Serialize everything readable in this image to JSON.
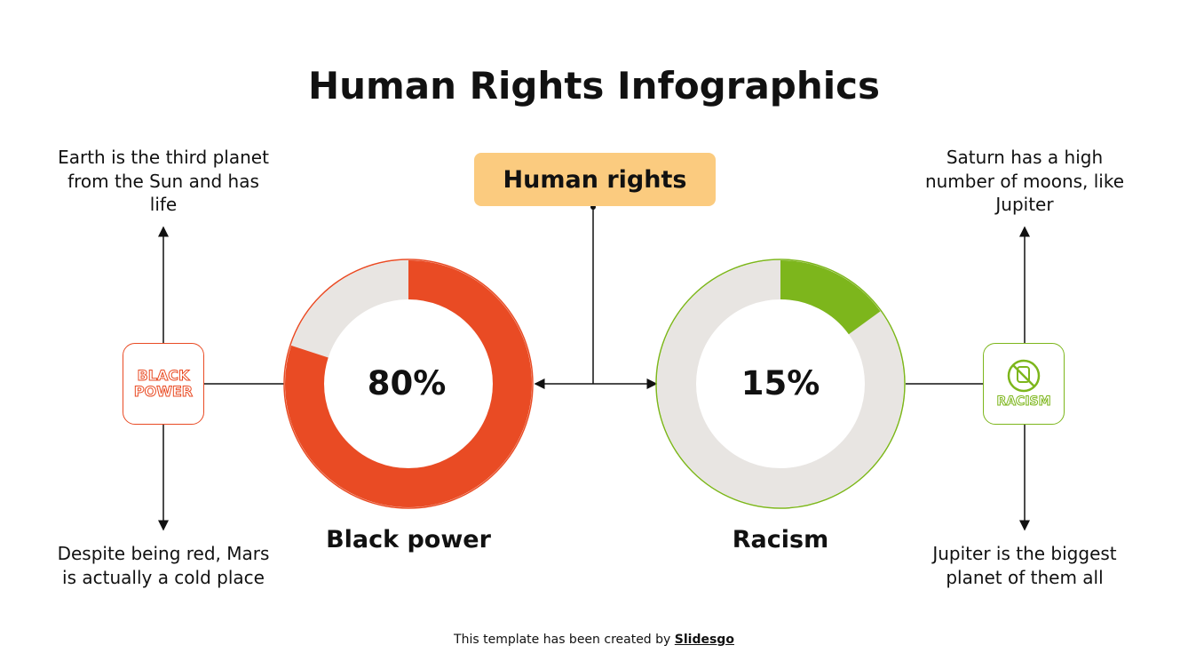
{
  "title": "Human Rights Infographics",
  "center_label": "Human rights",
  "colors": {
    "orange": "#E94B24",
    "green": "#7DB61C",
    "track": "#E8E5E2",
    "label_bg": "#FBCB7F"
  },
  "left": {
    "category": "Black power",
    "percent": 80,
    "percent_label": "80%",
    "icon": "black-power-text-icon",
    "icon_text": [
      "BLACK",
      "POWER"
    ],
    "top_text": "Earth is the third planet from the Sun and has life",
    "bottom_text": "Despite being red, Mars is actually a cold place"
  },
  "right": {
    "category": "Racism",
    "percent": 15,
    "percent_label": "15%",
    "icon": "no-racism-hand-icon",
    "icon_text": [
      "RACISM"
    ],
    "top_text": "Saturn has a high number of moons, like Jupiter",
    "bottom_text": "Jupiter is the biggest planet of them all"
  },
  "footer": {
    "text": "This template has been created by ",
    "brand": "Slidesgo"
  }
}
